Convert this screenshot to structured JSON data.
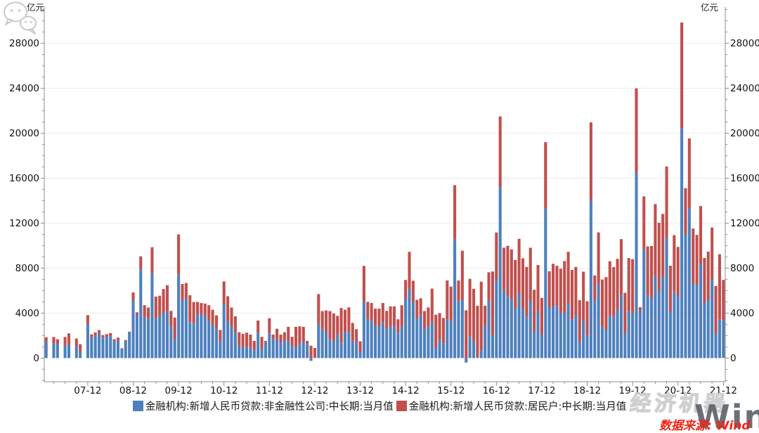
{
  "chart_data": {
    "type": "bar",
    "stacked": true,
    "title": "",
    "unit_label_left": "亿元",
    "unit_label_right": "亿元",
    "grid": true,
    "legend_position": "bottom",
    "months_start": "2007-01",
    "months_count": 180,
    "x_tick_labels": [
      "07-12",
      "08-12",
      "09-12",
      "10-12",
      "11-12",
      "12-12",
      "13-12",
      "14-12",
      "15-12",
      "16-12",
      "17-12",
      "18-12",
      "19-12",
      "20-12",
      "21-12"
    ],
    "x_tick_month_indices": [
      11,
      23,
      35,
      47,
      59,
      71,
      83,
      95,
      107,
      119,
      131,
      143,
      155,
      167,
      179
    ],
    "y_ticks": [
      0,
      4000,
      8000,
      12000,
      16000,
      20000,
      24000,
      28000
    ],
    "y_minor_step": 1000,
    "ylim": [
      -2100,
      31100
    ],
    "series": [
      {
        "name": "金融机构:新增人民币贷款:非金融性公司:中长期:当月值",
        "color": "#4e80bd",
        "values": [
          1430,
          0,
          1320,
          1220,
          0,
          1110,
          1180,
          0,
          1050,
          530,
          0,
          3050,
          1820,
          1990,
          2200,
          1820,
          1900,
          1950,
          1490,
          1570,
          820,
          1530,
          2300,
          5150,
          3780,
          7890,
          3610,
          3510,
          7550,
          3510,
          3780,
          4030,
          4180,
          2800,
          1660,
          7450,
          5110,
          5280,
          3200,
          3110,
          3900,
          3900,
          3750,
          3300,
          3000,
          2600,
          1500,
          4820,
          3300,
          2800,
          2260,
          1110,
          970,
          1010,
          910,
          700,
          2260,
          840,
          1390,
          2200,
          1680,
          1740,
          1320,
          1590,
          1530,
          1050,
          970,
          1260,
          1430,
          1260,
          -250,
          100,
          3030,
          2570,
          2300,
          1640,
          1530,
          2090,
          1320,
          2300,
          2300,
          1530,
          1430,
          500,
          5010,
          3500,
          3300,
          2900,
          2800,
          3200,
          2600,
          2800,
          2820,
          2260,
          2780,
          5220,
          6110,
          5000,
          3500,
          3820,
          2600,
          2800,
          3200,
          900,
          1630,
          1320,
          3450,
          3300,
          10600,
          5100,
          5150,
          -400,
          1950,
          1490,
          70,
          700,
          2890,
          5130,
          2000,
          6954,
          15200,
          6018,
          5482,
          5226,
          4396,
          5778,
          4332,
          3639,
          5029,
          2366,
          4100,
          2059,
          13300,
          4500,
          4615,
          4668,
          4031,
          4001,
          4875,
          3425,
          3800,
          1429,
          3295,
          1976,
          14000,
          5127,
          6573,
          2823,
          2524,
          3753,
          3678,
          4285,
          5637,
          2216,
          4206,
          3978,
          16500,
          4157,
          9643,
          5547,
          5305,
          7348,
          5968,
          7252,
          10680,
          4153,
          5887,
          5500,
          20400,
          11000,
          13300,
          6605,
          6528,
          8367,
          4937,
          5215,
          6948,
          2190,
          3417,
          3393
        ]
      },
      {
        "name": "金融机构:新增人民币贷款:居民户:中长期:当月值",
        "color": "#c0504d",
        "values": [
          420,
          0,
          560,
          460,
          0,
          770,
          1020,
          0,
          690,
          700,
          0,
          770,
          290,
          290,
          290,
          230,
          230,
          270,
          190,
          250,
          60,
          80,
          50,
          690,
          290,
          1160,
          1090,
          980,
          2310,
          1960,
          1770,
          2110,
          2300,
          1400,
          1940,
          3550,
          1480,
          1400,
          2390,
          1880,
          1100,
          1000,
          1100,
          1400,
          1300,
          1200,
          1000,
          2000,
          2200,
          1700,
          1460,
          1190,
          1190,
          1250,
          1180,
          830,
          1080,
          1050,
          140,
          1350,
          410,
          870,
          770,
          710,
          1250,
          840,
          1810,
          1560,
          1350,
          270,
          1100,
          800,
          2660,
          1610,
          1940,
          2540,
          2440,
          1670,
          3130,
          2000,
          2210,
          1600,
          1140,
          1000,
          3190,
          1500,
          1600,
          1500,
          1600,
          1700,
          1600,
          1800,
          1780,
          1190,
          1920,
          1730,
          3340,
          1880,
          1680,
          1500,
          1580,
          1700,
          2980,
          2960,
          2370,
          2250,
          3450,
          3060,
          4783,
          1800,
          4400,
          4250,
          5100,
          4670,
          4580,
          6100,
          1770,
          2500,
          5700,
          4217,
          6293,
          3804,
          4503,
          4441,
          4326,
          4833,
          4544,
          4470,
          4786,
          3710,
          4178,
          3292,
          5910,
          3220,
          3770,
          3543,
          3923,
          4634,
          4576,
          4415,
          4309,
          3730,
          4391,
          3079,
          6969,
          2226,
          4605,
          4165,
          4677,
          4858,
          4417,
          4540,
          4943,
          3587,
          4689,
          4824,
          7491,
          371,
          4738,
          4389,
          4662,
          6349,
          6067,
          5571,
          6362,
          4059,
          5049,
          4392,
          9448,
          4113,
          6239,
          4918,
          4426,
          5156,
          3974,
          4259,
          4667,
          4221,
          5821,
          3558
        ]
      }
    ]
  },
  "watermarks": {
    "brand_text": "经济机器",
    "wind_text": "Wind",
    "source_text": "数据来源: Wind"
  }
}
